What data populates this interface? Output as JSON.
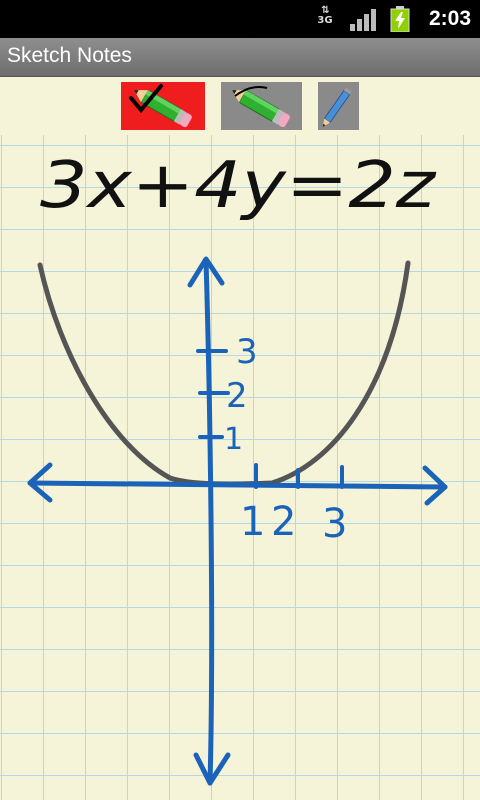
{
  "status_bar": {
    "network_type": "3G",
    "time": "2:03",
    "icons": [
      "data-transfer-icon",
      "signal-strength-icon",
      "battery-charging-icon"
    ]
  },
  "app": {
    "title": "Sketch Notes"
  },
  "toolbar": {
    "tools": [
      {
        "name": "thick-pen",
        "icon": "pen-checked-icon",
        "selected": true
      },
      {
        "name": "thin-pen",
        "icon": "pen-icon",
        "selected": false
      },
      {
        "name": "pencil",
        "icon": "pencil-icon",
        "selected": false
      }
    ]
  },
  "colors": {
    "paper": "#f5f3d8",
    "grid": "#b6d8e4",
    "ink_black": "#111111",
    "ink_blue": "#1b63b8",
    "ink_gray": "#555555",
    "selected_tool": "#ef1d1d",
    "tool_background": "#8a8a8a"
  },
  "sketch": {
    "equation": "3x+4y=2z",
    "y_axis_labels": [
      "3",
      "2",
      "1"
    ],
    "x_axis_labels": [
      "1",
      "2",
      "3"
    ]
  }
}
